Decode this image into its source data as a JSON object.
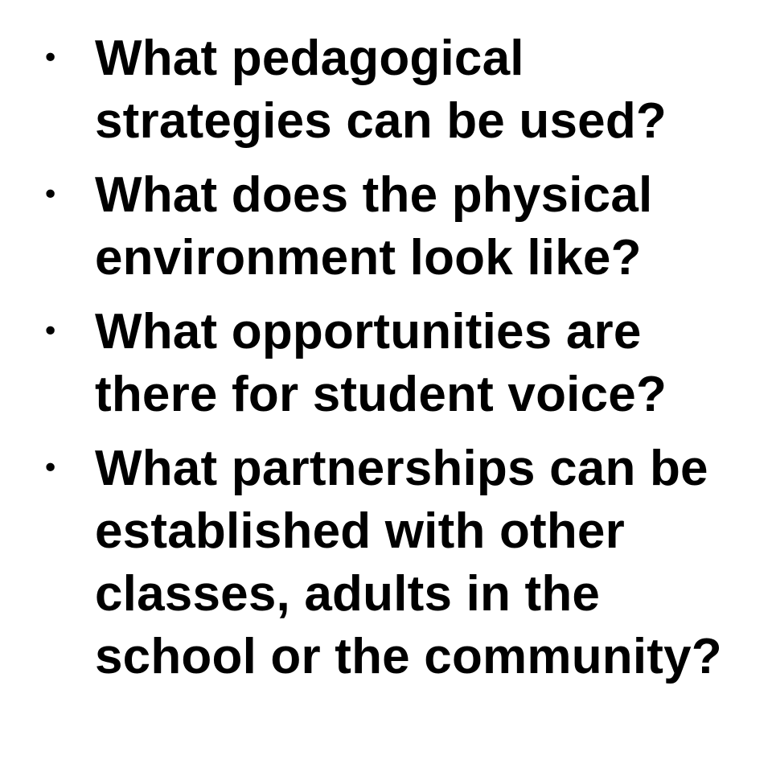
{
  "slide": {
    "bullet_glyph": "•",
    "items": [
      {
        "text": "What pedagogical\nstrategies can be used?"
      },
      {
        "text": "What does the physical\nenvironment look like?"
      },
      {
        "text": "What opportunities are\nthere for student voice?"
      },
      {
        "text": "What partnerships can be\nestablished with other\nclasses, adults in the\nschool or the community?"
      }
    ]
  },
  "colors": {
    "text": "#000000",
    "background": "#ffffff"
  }
}
